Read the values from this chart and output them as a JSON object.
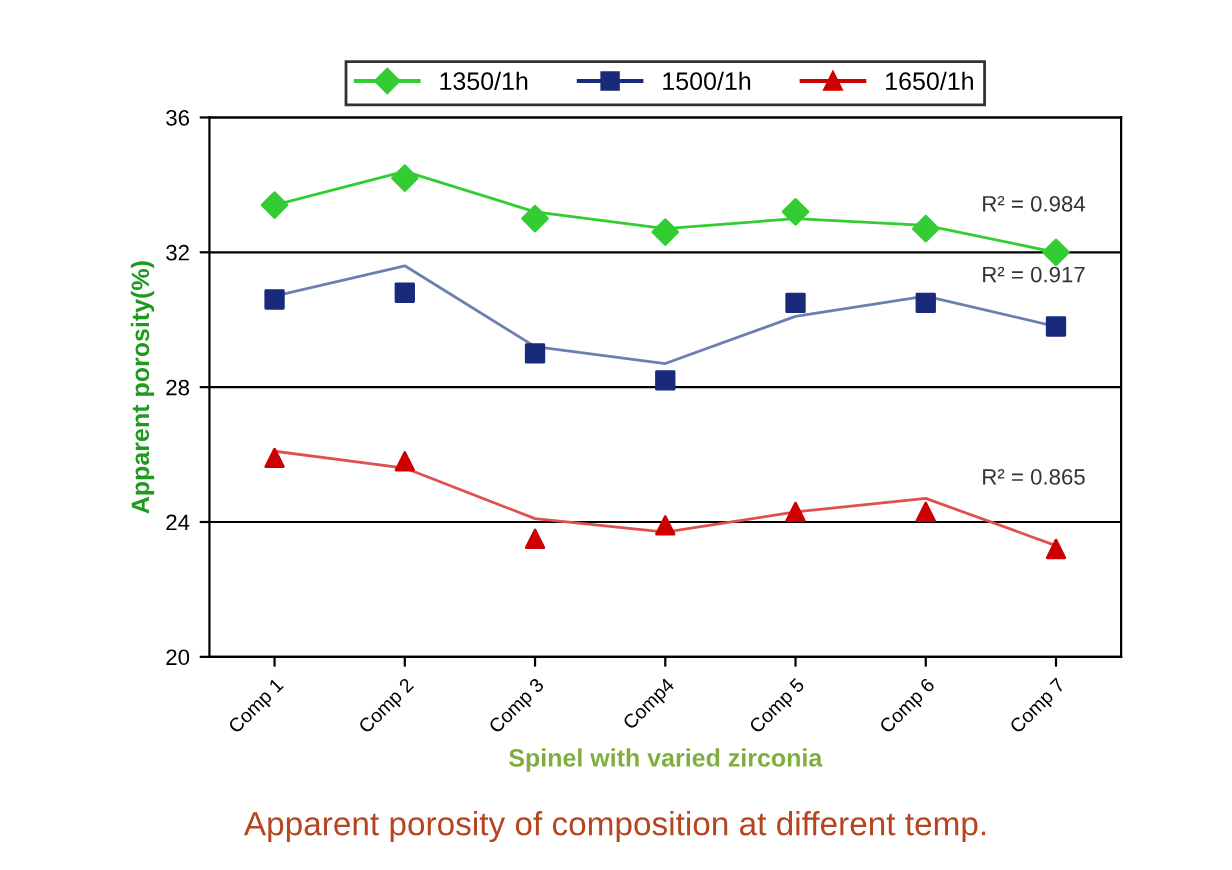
{
  "chart_data": {
    "type": "line",
    "title": "Apparent porosity of composition at different temp.",
    "xlabel": "Spinel with varied zirconia",
    "ylabel": "Apparent porosity(%)",
    "categories": [
      "Comp 1",
      "Comp 2",
      "Comp 3",
      "Comp4",
      "Comp 5",
      "Comp 6",
      "Comp 7"
    ],
    "series": [
      {
        "name": "1350/1h",
        "color": "#33cc33",
        "type": "scatter",
        "marker": "diamond",
        "values": [
          33.4,
          34.2,
          33.0,
          32.6,
          33.2,
          32.7,
          32.0
        ]
      },
      {
        "name": "1500/1h",
        "color": "#1a2a7a",
        "type": "scatter",
        "marker": "square",
        "values": [
          30.6,
          30.8,
          29.0,
          28.2,
          30.5,
          30.5,
          29.8
        ]
      },
      {
        "name": "1650/1h",
        "color": "#cc0000",
        "type": "scatter",
        "marker": "triangle",
        "values": [
          25.9,
          25.8,
          23.5,
          23.9,
          24.3,
          24.3,
          23.2
        ]
      },
      {
        "color": "#33cc33",
        "values": [
          33.4,
          34.4,
          33.2,
          32.7,
          33.0,
          32.8,
          32.0
        ]
      },
      {
        "color": "#6b7fb3",
        "values": [
          30.7,
          31.6,
          29.2,
          28.7,
          30.1,
          30.7,
          29.8
        ]
      },
      {
        "color": "#e05050",
        "values": [
          26.1,
          25.6,
          24.1,
          23.7,
          24.3,
          24.7,
          23.3
        ]
      }
    ],
    "annotations": [
      "R² = 0.984",
      "R² = 0.917",
      "R² = 0.865"
    ],
    "ylim": [
      20,
      36
    ],
    "yticks": [
      20,
      24,
      28,
      32,
      36
    ],
    "grid": "y",
    "legend": "top"
  }
}
